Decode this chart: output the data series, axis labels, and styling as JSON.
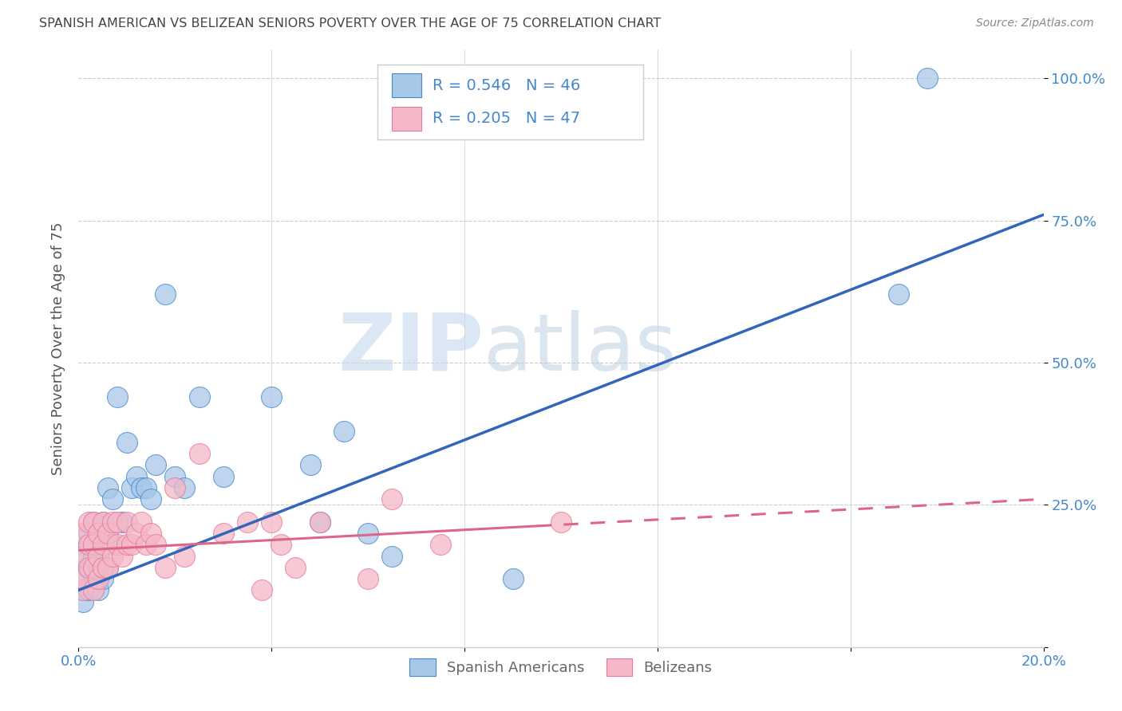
{
  "title": "SPANISH AMERICAN VS BELIZEAN SENIORS POVERTY OVER THE AGE OF 75 CORRELATION CHART",
  "source": "Source: ZipAtlas.com",
  "ylabel": "Seniors Poverty Over the Age of 75",
  "xlim": [
    0.0,
    0.2
  ],
  "ylim": [
    0.0,
    1.05
  ],
  "xtick_positions": [
    0.0,
    0.04,
    0.08,
    0.12,
    0.16,
    0.2
  ],
  "xticklabels": [
    "0.0%",
    "",
    "",
    "",
    "",
    "20.0%"
  ],
  "ytick_positions": [
    0.0,
    0.25,
    0.5,
    0.75,
    1.0
  ],
  "ytick_labels": [
    "",
    "25.0%",
    "50.0%",
    "75.0%",
    "100.0%"
  ],
  "blue_R": "0.546",
  "blue_N": "46",
  "pink_R": "0.205",
  "pink_N": "47",
  "blue_fill": "#a8c8e8",
  "pink_fill": "#f4b8c8",
  "blue_edge": "#4488cc",
  "pink_edge": "#e87898",
  "blue_line": "#3366bb",
  "pink_line": "#dd6688",
  "tick_color": "#4488cc",
  "legend_label_blue": "Spanish Americans",
  "legend_label_pink": "Belizeans",
  "blue_scatter_x": [
    0.001,
    0.001,
    0.001,
    0.001,
    0.002,
    0.002,
    0.002,
    0.002,
    0.003,
    0.003,
    0.003,
    0.003,
    0.004,
    0.004,
    0.004,
    0.005,
    0.005,
    0.005,
    0.006,
    0.006,
    0.006,
    0.007,
    0.007,
    0.008,
    0.009,
    0.01,
    0.011,
    0.012,
    0.013,
    0.014,
    0.015,
    0.016,
    0.018,
    0.02,
    0.022,
    0.025,
    0.03,
    0.04,
    0.048,
    0.05,
    0.055,
    0.06,
    0.065,
    0.09,
    0.17,
    0.176
  ],
  "blue_scatter_y": [
    0.1,
    0.12,
    0.15,
    0.08,
    0.14,
    0.18,
    0.1,
    0.2,
    0.16,
    0.12,
    0.18,
    0.22,
    0.1,
    0.16,
    0.2,
    0.14,
    0.22,
    0.12,
    0.2,
    0.14,
    0.28,
    0.18,
    0.26,
    0.44,
    0.22,
    0.36,
    0.28,
    0.3,
    0.28,
    0.28,
    0.26,
    0.32,
    0.62,
    0.3,
    0.28,
    0.44,
    0.3,
    0.44,
    0.32,
    0.22,
    0.38,
    0.2,
    0.16,
    0.12,
    0.62,
    1.0
  ],
  "pink_scatter_x": [
    0.001,
    0.001,
    0.001,
    0.001,
    0.002,
    0.002,
    0.002,
    0.003,
    0.003,
    0.003,
    0.003,
    0.004,
    0.004,
    0.004,
    0.005,
    0.005,
    0.005,
    0.006,
    0.006,
    0.007,
    0.007,
    0.008,
    0.008,
    0.009,
    0.01,
    0.01,
    0.011,
    0.012,
    0.013,
    0.014,
    0.015,
    0.016,
    0.018,
    0.02,
    0.022,
    0.025,
    0.03,
    0.035,
    0.038,
    0.04,
    0.042,
    0.045,
    0.05,
    0.06,
    0.065,
    0.075,
    0.1
  ],
  "pink_scatter_y": [
    0.1,
    0.12,
    0.16,
    0.2,
    0.14,
    0.18,
    0.22,
    0.1,
    0.14,
    0.18,
    0.22,
    0.12,
    0.16,
    0.2,
    0.14,
    0.18,
    0.22,
    0.14,
    0.2,
    0.16,
    0.22,
    0.18,
    0.22,
    0.16,
    0.18,
    0.22,
    0.18,
    0.2,
    0.22,
    0.18,
    0.2,
    0.18,
    0.14,
    0.28,
    0.16,
    0.34,
    0.2,
    0.22,
    0.1,
    0.22,
    0.18,
    0.14,
    0.22,
    0.12,
    0.26,
    0.18,
    0.22
  ],
  "watermark_zip": "ZIP",
  "watermark_atlas": "atlas",
  "background_color": "#ffffff",
  "grid_color": "#cccccc",
  "blue_trend_x0": 0.0,
  "blue_trend_x1": 0.2,
  "blue_trend_y0": 0.1,
  "blue_trend_y1": 0.76,
  "pink_trend_x0": 0.0,
  "pink_trend_x1": 0.2,
  "pink_trend_y0": 0.17,
  "pink_trend_y1": 0.26
}
